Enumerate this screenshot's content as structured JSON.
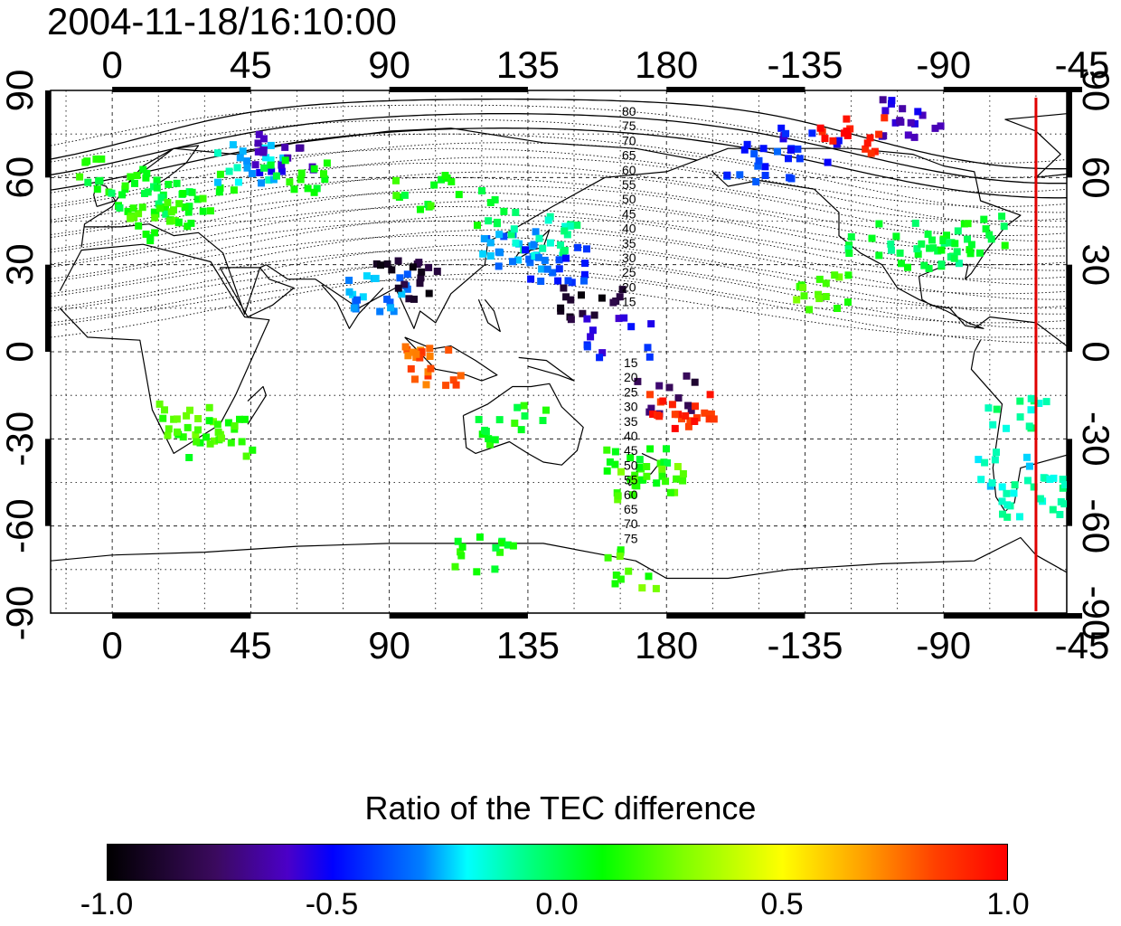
{
  "timestamp": "2004-11-18/16:10:00",
  "axes": {
    "top_ticks": [
      "0",
      "45",
      "90",
      "135",
      "180",
      "-135",
      "-90",
      "-45"
    ],
    "bottom_ticks": [
      "0",
      "45",
      "90",
      "135",
      "180",
      "-135",
      "-90",
      "-45"
    ],
    "left_ticks": [
      "90",
      "60",
      "30",
      "0",
      "-30",
      "-60",
      "-90"
    ],
    "right_ticks": [
      "90",
      "60",
      "30",
      "0",
      "-30",
      "-60",
      "-90"
    ],
    "longitude_range_deg": [
      -20,
      310
    ],
    "latitude_range_deg": [
      -90,
      90
    ]
  },
  "contour_labels": {
    "north": [
      "80",
      "75",
      "70",
      "65",
      "60",
      "55",
      "50",
      "45",
      "40",
      "35",
      "30",
      "25",
      "20",
      "15"
    ],
    "south": [
      "15",
      "20",
      "25",
      "30",
      "35",
      "40",
      "45",
      "50",
      "55",
      "60",
      "65",
      "70",
      "75"
    ]
  },
  "marker_line": {
    "longitude_deg": -60,
    "color": "#e00000"
  },
  "colorbar": {
    "title": "Ratio of the TEC difference",
    "min": -1.0,
    "max": 1.0,
    "tick_labels": [
      "-1.0",
      "-0.5",
      "0.0",
      "0.5",
      "1.0"
    ],
    "colors": [
      "#000000",
      "#4b00c8",
      "#0000ff",
      "#00ffff",
      "#00ff00",
      "#ffff00",
      "#ff0000"
    ]
  },
  "data_cells": [
    {
      "lon": 0,
      "lat": 60,
      "ratio": 0.1
    },
    {
      "lon": 10,
      "lat": 55,
      "ratio": 0.05
    },
    {
      "lon": 20,
      "lat": 50,
      "ratio": 0.05
    },
    {
      "lon": 30,
      "lat": 55,
      "ratio": 0.1
    },
    {
      "lon": 15,
      "lat": 45,
      "ratio": 0.15
    },
    {
      "lon": 45,
      "lat": 65,
      "ratio": -0.2
    },
    {
      "lon": 55,
      "lat": 68,
      "ratio": -0.6
    },
    {
      "lon": 60,
      "lat": 60,
      "ratio": 0.1
    },
    {
      "lon": 100,
      "lat": 55,
      "ratio": 0.1
    },
    {
      "lon": 120,
      "lat": 50,
      "ratio": 0.05
    },
    {
      "lon": 130,
      "lat": 35,
      "ratio": -0.3
    },
    {
      "lon": 140,
      "lat": 40,
      "ratio": -0.1
    },
    {
      "lon": 145,
      "lat": 30,
      "ratio": -0.4
    },
    {
      "lon": 155,
      "lat": 15,
      "ratio": -0.9
    },
    {
      "lon": 165,
      "lat": 5,
      "ratio": -0.5
    },
    {
      "lon": 180,
      "lat": -15,
      "ratio": -0.8
    },
    {
      "lon": 185,
      "lat": -20,
      "ratio": 0.9
    },
    {
      "lon": 170,
      "lat": -40,
      "ratio": 0.1
    },
    {
      "lon": 175,
      "lat": -45,
      "ratio": 0.2
    },
    {
      "lon": 210,
      "lat": 65,
      "ratio": -0.4
    },
    {
      "lon": 225,
      "lat": 70,
      "ratio": -0.5
    },
    {
      "lon": 250,
      "lat": 40,
      "ratio": 0.0
    },
    {
      "lon": 265,
      "lat": 35,
      "ratio": 0.0
    },
    {
      "lon": 280,
      "lat": 40,
      "ratio": 0.05
    },
    {
      "lon": 260,
      "lat": 80,
      "ratio": -0.6
    },
    {
      "lon": 240,
      "lat": 75,
      "ratio": 0.95
    },
    {
      "lon": 295,
      "lat": -20,
      "ratio": -0.1
    },
    {
      "lon": 290,
      "lat": -40,
      "ratio": -0.2
    },
    {
      "lon": 300,
      "lat": -50,
      "ratio": -0.1
    },
    {
      "lon": 25,
      "lat": -25,
      "ratio": 0.2
    },
    {
      "lon": 35,
      "lat": -30,
      "ratio": 0.15
    },
    {
      "lon": 130,
      "lat": -25,
      "ratio": 0.1
    },
    {
      "lon": 120,
      "lat": -70,
      "ratio": 0.1
    },
    {
      "lon": 170,
      "lat": -75,
      "ratio": 0.2
    },
    {
      "lon": 105,
      "lat": -5,
      "ratio": 0.8
    },
    {
      "lon": 85,
      "lat": 20,
      "ratio": -0.3
    },
    {
      "lon": 95,
      "lat": 25,
      "ratio": -0.9
    },
    {
      "lon": 230,
      "lat": 20,
      "ratio": 0.2
    }
  ]
}
